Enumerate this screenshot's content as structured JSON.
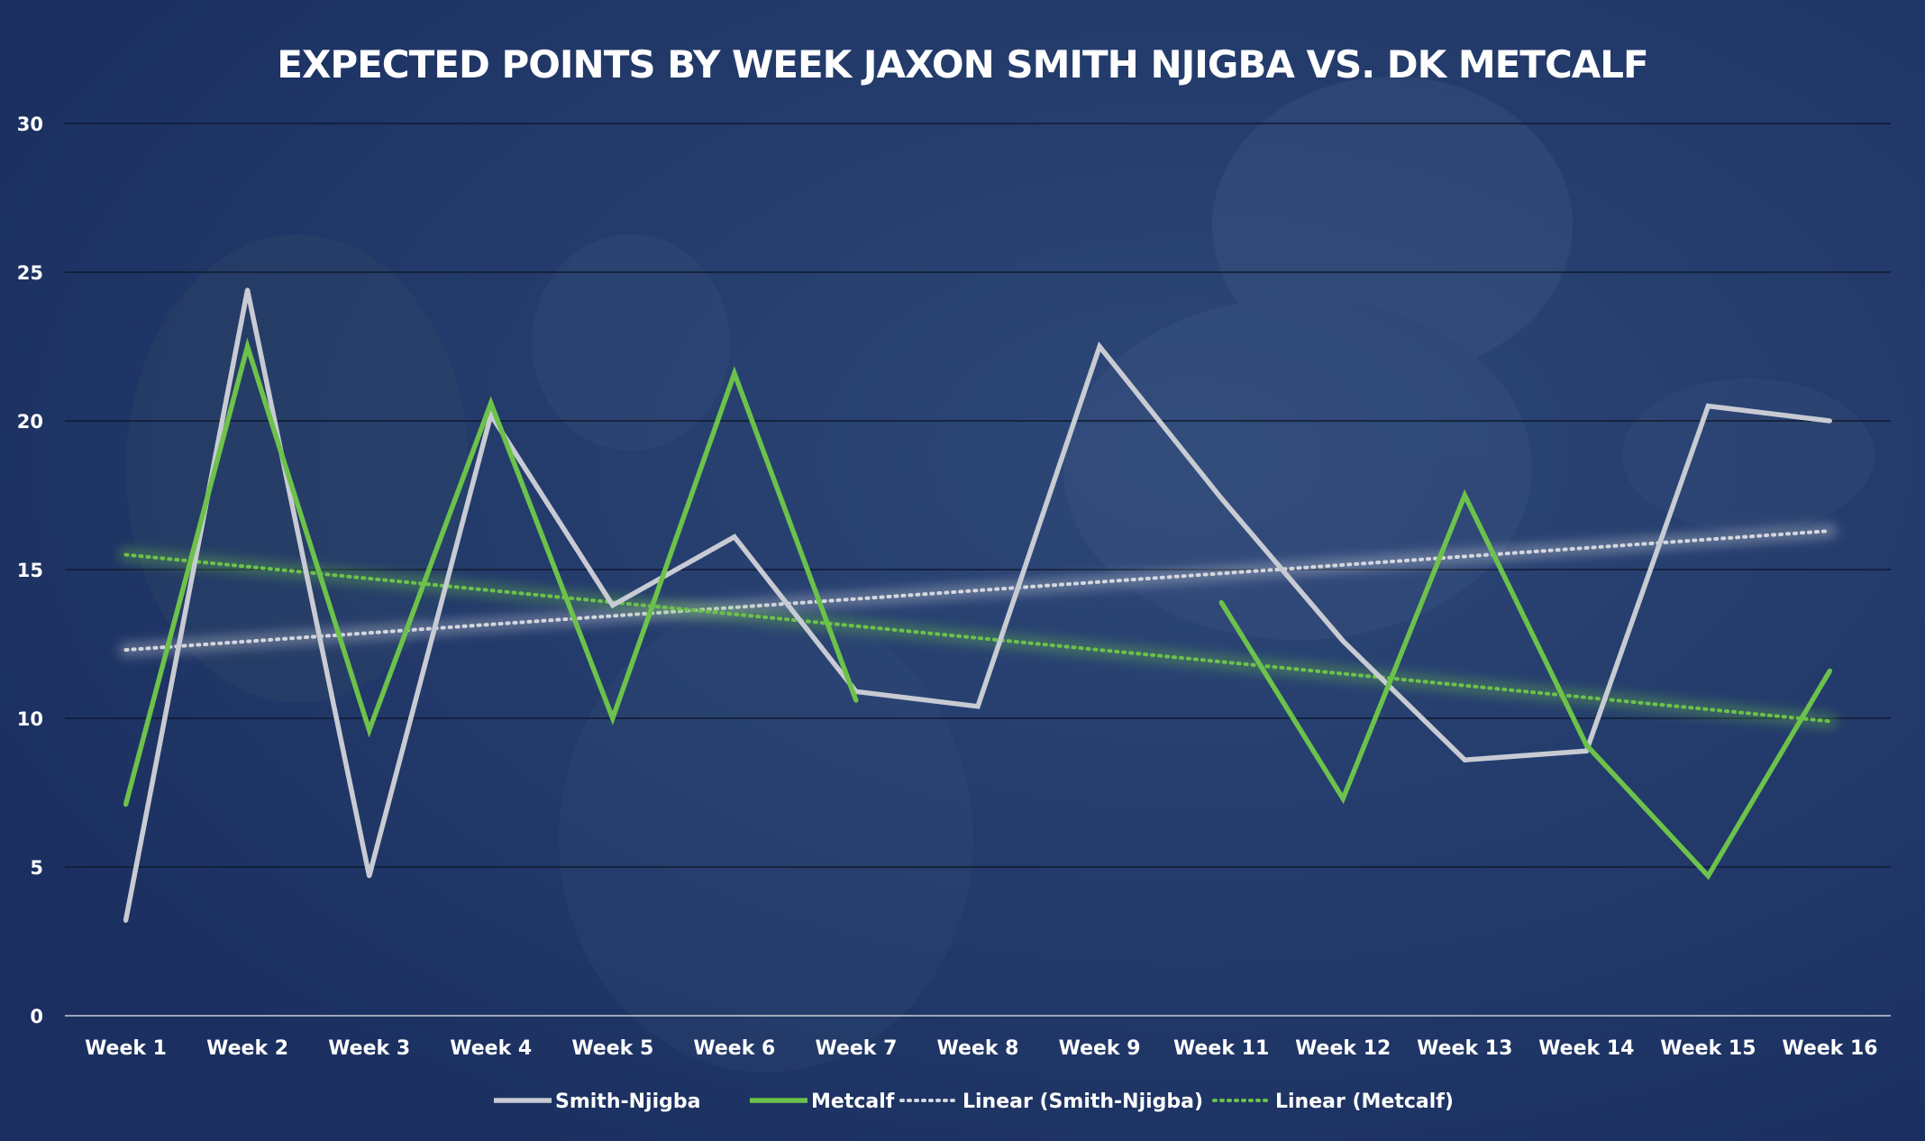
{
  "chart_data": {
    "type": "line",
    "title": "EXPECTED POINTS BY WEEK  JAXON SMITH  NJIGBA VS. DK METCALF",
    "xlabel": "",
    "ylabel": "",
    "categories": [
      "Week 1",
      "Week 2",
      "Week 3",
      "Week 4",
      "Week 5",
      "Week 6",
      "Week 7",
      "Week 8",
      "Week 9",
      "Week 11",
      "Week 12",
      "Week 13",
      "Week 14",
      "Week 15",
      "Week 16"
    ],
    "ylim": [
      0,
      30
    ],
    "yticks": [
      "0",
      "5",
      "10",
      "15",
      "20",
      "25",
      "30"
    ],
    "grid": true,
    "legend_position": "bottom",
    "series": [
      {
        "name": "Smith-Njigba",
        "color": "#c8cbd3",
        "values": [
          3.2,
          24.4,
          4.7,
          20.2,
          13.8,
          16.1,
          10.9,
          10.4,
          22.5,
          17.4,
          12.6,
          8.6,
          8.9,
          20.5,
          20.0
        ]
      },
      {
        "name": "Metcalf",
        "color": "#6cc24a",
        "values": [
          7.1,
          22.5,
          9.6,
          20.6,
          10.0,
          21.6,
          10.6,
          null,
          null,
          13.9,
          7.3,
          17.5,
          9.1,
          4.7,
          11.6
        ]
      }
    ],
    "trendlines": [
      {
        "name": "Linear (Smith-Njigba)",
        "color": "#d4d7de",
        "start": 12.3,
        "end": 16.3
      },
      {
        "name": "Linear (Metcalf)",
        "color": "#6cc24a",
        "start": 15.5,
        "end": 9.9
      }
    ]
  }
}
